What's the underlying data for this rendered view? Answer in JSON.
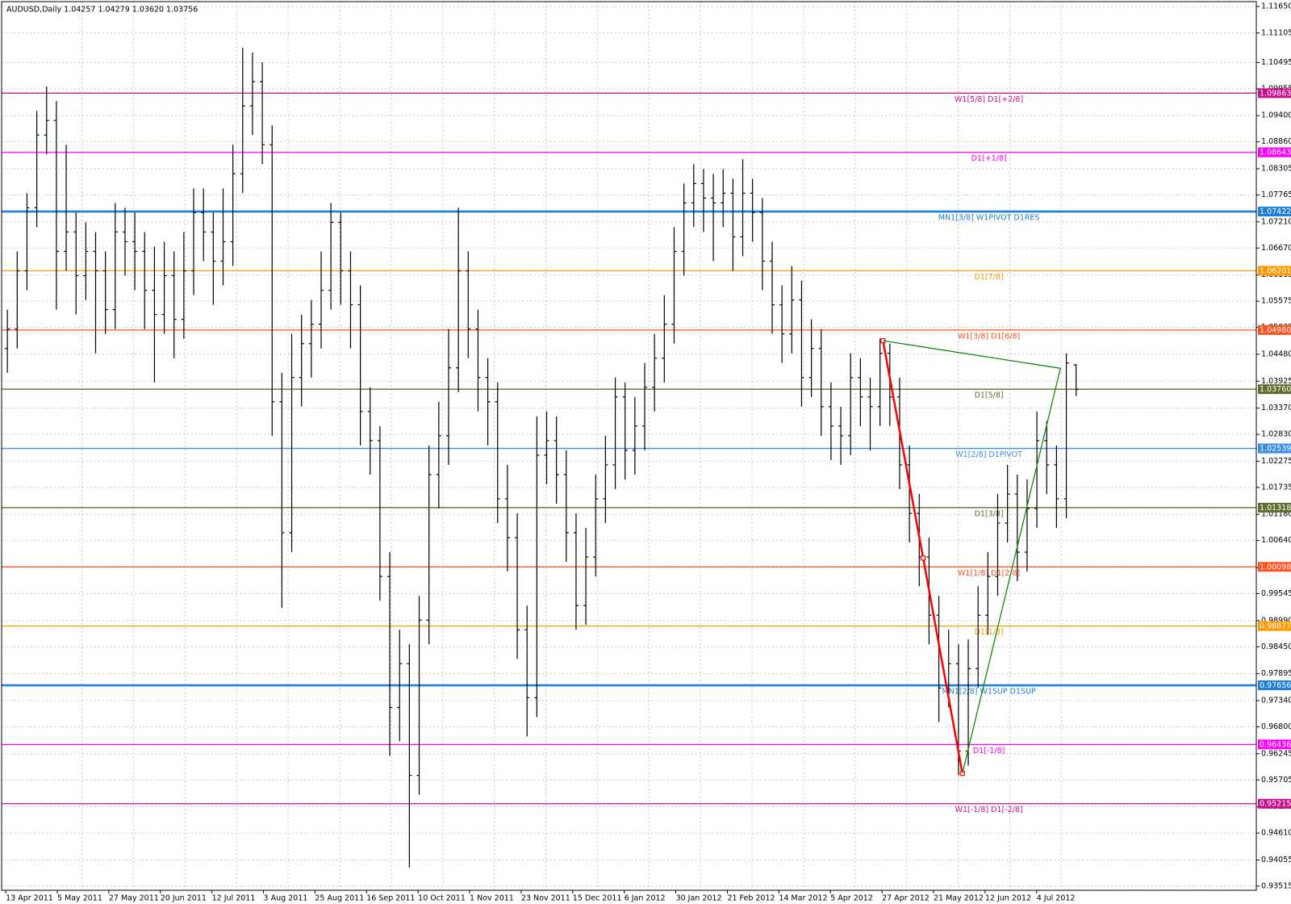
{
  "chart_data": {
    "type": "ohlc",
    "title": "AUDUSD,Daily  1.04257 1.04279 1.03620 1.03756",
    "bar_color": "#000000",
    "grid": true,
    "ylim": [
      0.9343,
      1.1175
    ],
    "yticks": [
      {
        "value": 1.1165,
        "label": "1.11650"
      },
      1.11105,
      1.10495,
      1.09955,
      {
        "value": 1.094,
        "label": "1.09400"
      },
      {
        "value": 1.0886,
        "label": "1.08860"
      },
      1.08305,
      1.07765,
      {
        "value": 1.0721,
        "label": "1.07210"
      },
      {
        "value": 1.0667,
        "label": "1.06670"
      },
      1.06115,
      1.05575,
      1.05035,
      {
        "value": 1.0448,
        "label": "1.04480"
      },
      1.03925,
      {
        "value": 1.0337,
        "label": "1.03370"
      },
      {
        "value": 1.0283,
        "label": "1.02830"
      },
      1.02275,
      1.01735,
      {
        "value": 1.0118,
        "label": "1.01180"
      },
      {
        "value": 1.0064,
        "label": "1.00640"
      },
      1.00085,
      0.99545,
      {
        "value": 0.9899,
        "label": "0.98990"
      },
      {
        "value": 0.9845,
        "label": "0.98450"
      },
      0.97895,
      {
        "value": 0.9734,
        "label": "0.97340"
      },
      {
        "value": 0.968,
        "label": "0.96800"
      },
      0.96245,
      0.95705,
      {
        "value": 0.9515,
        "label": "0.95150"
      },
      {
        "value": 0.9461,
        "label": "0.94610"
      },
      0.94055,
      0.93515
    ],
    "dates": [
      "13 Apr 2011",
      "5 May 2011",
      "27 May 2011",
      "20 Jun 2011",
      "12 Jul 2011",
      "3 Aug 2011",
      "25 Aug 2011",
      "16 Sep 2011",
      "10 Oct 2011",
      "1 Nov 2011",
      "23 Nov 2011",
      "15 Dec 2011",
      "6 Jan 2012",
      "30 Jan 2012",
      "21 Feb 2012",
      "14 Mar 2012",
      "5 Apr 2012",
      "27 Apr 2012",
      "21 May 2012",
      "12 Jun 2012",
      "4 Jul 2012"
    ],
    "ohlc": [
      [
        1.046,
        1.054,
        1.041,
        1.05
      ],
      [
        1.05,
        1.066,
        1.046,
        1.062
      ],
      [
        1.062,
        1.078,
        1.058,
        1.075
      ],
      [
        1.075,
        1.095,
        1.071,
        1.09
      ],
      [
        1.09,
        1.1,
        1.086,
        1.093
      ],
      [
        1.093,
        1.097,
        1.054,
        1.066
      ],
      [
        1.066,
        1.088,
        1.062,
        1.07
      ],
      [
        1.07,
        1.074,
        1.053,
        1.061
      ],
      [
        1.061,
        1.072,
        1.056,
        1.066
      ],
      [
        1.066,
        1.07,
        1.045,
        1.062
      ],
      [
        1.062,
        1.066,
        1.049,
        1.054
      ],
      [
        1.054,
        1.076,
        1.05,
        1.07
      ],
      [
        1.07,
        1.075,
        1.061,
        1.068
      ],
      [
        1.068,
        1.074,
        1.058,
        1.066
      ],
      [
        1.066,
        1.07,
        1.05,
        1.058
      ],
      [
        1.058,
        1.067,
        1.039,
        1.053
      ],
      [
        1.053,
        1.068,
        1.049,
        1.061
      ],
      [
        1.061,
        1.066,
        1.044,
        1.052
      ],
      [
        1.052,
        1.07,
        1.048,
        1.062
      ],
      [
        1.062,
        1.079,
        1.057,
        1.074
      ],
      [
        1.074,
        1.079,
        1.064,
        1.07
      ],
      [
        1.07,
        1.074,
        1.055,
        1.064
      ],
      [
        1.064,
        1.079,
        1.059,
        1.068
      ],
      [
        1.068,
        1.088,
        1.063,
        1.082
      ],
      [
        1.082,
        1.108,
        1.078,
        1.096
      ],
      [
        1.096,
        1.107,
        1.09,
        1.101
      ],
      [
        1.101,
        1.105,
        1.084,
        1.088
      ],
      [
        1.088,
        1.092,
        1.028,
        1.035
      ],
      [
        1.035,
        1.041,
        0.9925,
        1.008
      ],
      [
        1.008,
        1.049,
        1.004,
        1.04
      ],
      [
        1.04,
        1.053,
        1.034,
        1.047
      ],
      [
        1.047,
        1.056,
        1.04,
        1.051
      ],
      [
        1.051,
        1.066,
        1.046,
        1.058
      ],
      [
        1.058,
        1.076,
        1.054,
        1.072
      ],
      [
        1.072,
        1.074,
        1.055,
        1.062
      ],
      [
        1.062,
        1.066,
        1.046,
        1.055
      ],
      [
        1.055,
        1.059,
        1.026,
        1.033
      ],
      [
        1.033,
        1.038,
        1.02,
        1.027
      ],
      [
        1.027,
        1.03,
        0.994,
        0.999
      ],
      [
        0.999,
        1.004,
        0.962,
        0.972
      ],
      [
        0.972,
        0.988,
        0.965,
        0.981
      ],
      [
        0.981,
        0.985,
        0.939,
        0.958
      ],
      [
        0.958,
        0.995,
        0.954,
        0.99
      ],
      [
        0.99,
        1.026,
        0.985,
        1.02
      ],
      [
        1.02,
        1.035,
        1.013,
        1.028
      ],
      [
        1.028,
        1.05,
        1.022,
        1.042
      ],
      [
        1.042,
        1.075,
        1.037,
        1.062
      ],
      [
        1.062,
        1.066,
        1.044,
        1.05
      ],
      [
        1.05,
        1.054,
        1.033,
        1.04
      ],
      [
        1.04,
        1.044,
        1.026,
        1.035
      ],
      [
        1.035,
        1.039,
        1.01,
        1.015
      ],
      [
        1.015,
        1.022,
        1.0,
        1.007
      ],
      [
        1.007,
        1.012,
        0.982,
        0.988
      ],
      [
        0.988,
        0.993,
        0.966,
        0.974
      ],
      [
        0.974,
        1.032,
        0.97,
        1.024
      ],
      [
        1.024,
        1.033,
        1.018,
        1.027
      ],
      [
        1.027,
        1.032,
        1.014,
        1.02
      ],
      [
        1.02,
        1.025,
        1.002,
        1.008
      ],
      [
        1.008,
        1.012,
        0.988,
        0.993
      ],
      [
        0.993,
        1.009,
        0.989,
        1.003
      ],
      [
        1.003,
        1.02,
        0.999,
        1.015
      ],
      [
        1.015,
        1.028,
        1.01,
        1.022
      ],
      [
        1.022,
        1.04,
        1.017,
        1.036
      ],
      [
        1.036,
        1.039,
        1.019,
        1.025
      ],
      [
        1.025,
        1.036,
        1.02,
        1.03
      ],
      [
        1.03,
        1.043,
        1.025,
        1.038
      ],
      [
        1.038,
        1.049,
        1.033,
        1.044
      ],
      [
        1.044,
        1.057,
        1.039,
        1.051
      ],
      [
        1.051,
        1.071,
        1.047,
        1.066
      ],
      [
        1.066,
        1.08,
        1.061,
        1.076
      ],
      [
        1.076,
        1.084,
        1.071,
        1.08
      ],
      [
        1.08,
        1.083,
        1.07,
        1.077
      ],
      [
        1.077,
        1.082,
        1.064,
        1.076
      ],
      [
        1.076,
        1.083,
        1.071,
        1.078
      ],
      [
        1.078,
        1.081,
        1.062,
        1.069
      ],
      [
        1.069,
        1.085,
        1.065,
        1.078
      ],
      [
        1.078,
        1.081,
        1.068,
        1.074
      ],
      [
        1.074,
        1.077,
        1.058,
        1.064
      ],
      [
        1.064,
        1.068,
        1.049,
        1.055
      ],
      [
        1.055,
        1.059,
        1.043,
        1.049
      ],
      [
        1.049,
        1.063,
        1.045,
        1.056
      ],
      [
        1.056,
        1.06,
        1.034,
        1.04
      ],
      [
        1.04,
        1.052,
        1.036,
        1.046
      ],
      [
        1.046,
        1.05,
        1.028,
        1.034
      ],
      [
        1.034,
        1.039,
        1.023,
        1.03
      ],
      [
        1.03,
        1.034,
        1.022,
        1.028
      ],
      [
        1.028,
        1.045,
        1.024,
        1.04
      ],
      [
        1.04,
        1.044,
        1.03,
        1.036
      ],
      [
        1.036,
        1.04,
        1.025,
        1.034
      ],
      [
        1.034,
        1.048,
        1.03,
        1.045
      ],
      [
        1.045,
        1.047,
        1.03,
        1.036
      ],
      [
        1.036,
        1.04,
        1.017,
        1.022
      ],
      [
        1.022,
        1.026,
        1.006,
        1.012
      ],
      [
        1.012,
        1.016,
        0.997,
        1.003
      ],
      [
        1.003,
        1.007,
        0.985,
        0.991
      ],
      [
        0.991,
        0.995,
        0.969,
        0.976
      ],
      [
        0.976,
        0.988,
        0.972,
        0.981
      ],
      [
        0.981,
        0.985,
        0.958,
        0.963
      ],
      [
        0.963,
        0.986,
        0.96,
        0.98
      ],
      [
        0.98,
        0.997,
        0.976,
        0.991
      ],
      [
        0.991,
        1.004,
        0.987,
        0.999
      ],
      [
        0.999,
        1.016,
        0.995,
        1.01
      ],
      [
        1.01,
        1.022,
        1.006,
        1.016
      ],
      [
        1.016,
        1.02,
        0.998,
        1.004
      ],
      [
        1.004,
        1.019,
        1.0,
        1.013
      ],
      [
        1.013,
        1.033,
        1.009,
        1.027
      ],
      [
        1.027,
        1.031,
        1.016,
        1.022
      ],
      [
        1.022,
        1.026,
        1.009,
        1.015
      ],
      [
        1.015,
        1.045,
        1.011,
        1.043
      ],
      [
        1.04257,
        1.04279,
        1.0362,
        1.03756
      ]
    ],
    "levels": {
      "values": [
        1.09863,
        1.08643,
        1.07422,
        1.06201,
        1.0498,
        1.0376,
        1.02539,
        1.01318,
        1.00098,
        0.98877,
        0.97656,
        0.96436,
        0.95215
      ],
      "value_labels": [
        "1.09863",
        "1.08643",
        "1.07422",
        "1.06201",
        "1.04980",
        "1.03760",
        "1.02539",
        "1.01318",
        "1.00098",
        "0.98877",
        "0.97656",
        "0.96436",
        "0.95215"
      ],
      "names": [
        "W1[5/8] D1[+2/8]",
        "D1[+1/8]",
        "MN1[3/8] W1PIVOT D1RES",
        "D1[7/8]",
        "W1[3/8] D1[6/8]",
        "D1[5/8]",
        "W1[2/8] D1PIVOT",
        "D1[3/8]",
        "W1[1/8] D1[2/8]",
        "D1[1/8]",
        "MN1[2/8] W1SUP D1SUP",
        "D1[-1/8]",
        "W1[-1/8] D1[-2/8]"
      ],
      "colors": [
        "#c8108c",
        "#ff00ff",
        "#1e7fd8",
        "#ff9900",
        "#ff5020",
        "#5f6e30",
        "#3a8ee6",
        "#5f6e30",
        "#ff5020",
        "#ff9900",
        "#1e7fd8",
        "#ff00ff",
        "#c8108c"
      ],
      "widths": [
        1,
        1,
        2,
        1,
        1,
        1,
        1,
        1,
        1,
        1,
        2,
        1,
        1
      ]
    },
    "patterns": [
      {
        "color": "#ff0000",
        "x": [
          89.3,
          93.4,
          97.4
        ],
        "y": [
          1.0476,
          1.0028,
          0.9584
        ]
      },
      {
        "color": "#128a12",
        "x": [
          89.3,
          107.4,
          97.4
        ],
        "y": [
          1.0476,
          1.0419,
          0.9584
        ]
      }
    ]
  }
}
